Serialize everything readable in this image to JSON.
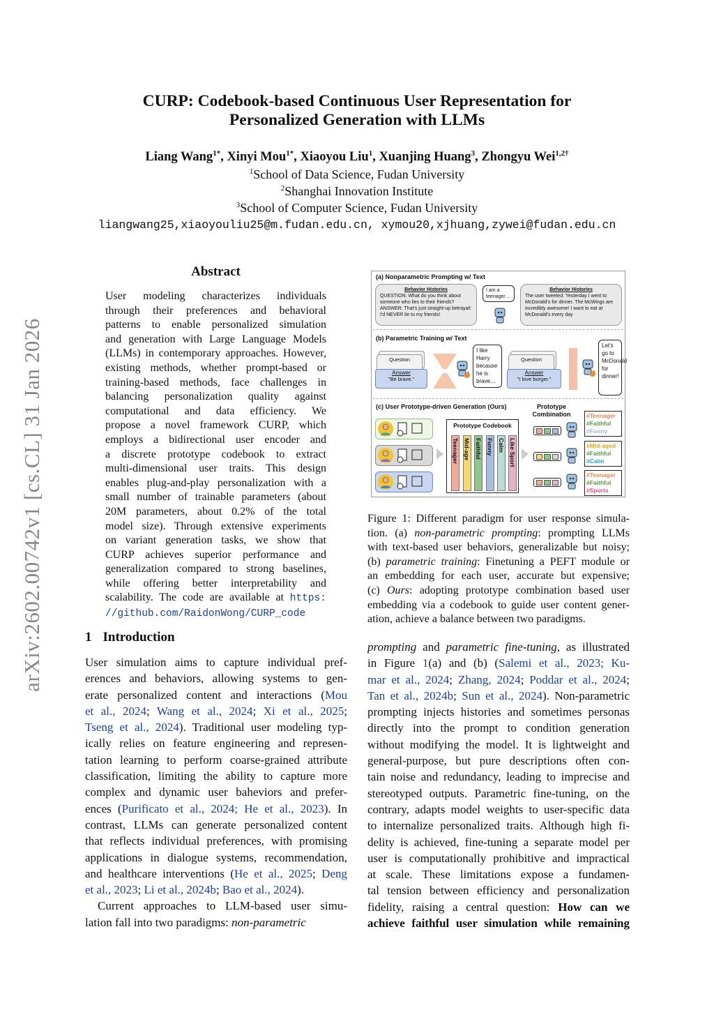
{
  "header": {
    "title_line1": "CURP: Codebook-based Continuous User Representation for",
    "title_line2": "Personalized Generation with LLMs",
    "authors": [
      {
        "name": "Liang Wang",
        "sup": "1*"
      },
      {
        "name": "Xinyi Mou",
        "sup": "1*"
      },
      {
        "name": "Xiaoyou Liu",
        "sup": "1"
      },
      {
        "name": "Xuanjing Huang",
        "sup": "3"
      },
      {
        "name": "Zhongyu Wei",
        "sup": "1,2†"
      }
    ],
    "affiliations": [
      {
        "sup": "1",
        "text": "School of Data Science, Fudan University"
      },
      {
        "sup": "2",
        "text": "Shanghai Innovation Institute"
      },
      {
        "sup": "3",
        "text": "School of Computer Science, Fudan University"
      }
    ],
    "emails": "liangwang25,xiaoyouliu25@m.fudan.edu.cn, xymou20,xjhuang,zywei@fudan.edu.cn"
  },
  "arxiv_stamp": "arXiv:2602.00742v1  [cs.CL]  31 Jan 2026",
  "abstract": {
    "heading": "Abstract",
    "lines": [
      [
        {
          "t": "User modeling characterizes individuals"
        }
      ],
      [
        {
          "t": "through their preferences and behavioral"
        }
      ],
      [
        {
          "t": "patterns to enable personalized simulation"
        }
      ],
      [
        {
          "t": "and generation with Large Language Models"
        }
      ],
      [
        {
          "t": "(LLMs) in contemporary approaches. However,"
        }
      ],
      [
        {
          "t": "existing methods, whether prompt-based or"
        }
      ],
      [
        {
          "t": "training-based methods, face challenges in"
        }
      ],
      [
        {
          "t": "balancing personalization quality against"
        }
      ],
      [
        {
          "t": "computational and data efficiency. We"
        }
      ],
      [
        {
          "t": "propose a novel framework CURP, which"
        }
      ],
      [
        {
          "t": "employs a bidirectional user encoder and"
        }
      ],
      [
        {
          "t": "a discrete prototype codebook to extract"
        }
      ],
      [
        {
          "t": "multi-dimensional user traits. This design"
        }
      ],
      [
        {
          "t": "enables plug-and-play personalization with a"
        }
      ],
      [
        {
          "t": "small number of trainable parameters (about"
        }
      ],
      [
        {
          "t": "20M parameters, about 0.2% of the total"
        }
      ],
      [
        {
          "t": "model size). Through extensive experiments"
        }
      ],
      [
        {
          "t": "on variant generation tasks, we show that"
        }
      ],
      [
        {
          "t": "CURP achieves superior performance and"
        }
      ],
      [
        {
          "t": "generalization compared to strong baselines,"
        }
      ],
      [
        {
          "t": "while offering better interpretability and"
        }
      ],
      [
        {
          "t": "scalability. The code are available at "
        },
        {
          "t": "https:",
          "s": "mlk"
        }
      ],
      [
        {
          "t": "//github.com/RaidonWong/CURP_code",
          "s": "mlk"
        }
      ]
    ]
  },
  "introduction": {
    "number": "1",
    "heading": "Introduction",
    "lines": [
      [
        {
          "t": "User simulation aims to capture individual pref-"
        }
      ],
      [
        {
          "t": "erences and behaviors, allowing systems to gen-"
        }
      ],
      [
        {
          "t": "erate personalized content and interactions ("
        },
        {
          "t": "Mou",
          "s": "lk"
        }
      ],
      [
        {
          "t": "et al., 2024",
          "s": "lk"
        },
        {
          "t": "; "
        },
        {
          "t": "Wang et al., 2024",
          "s": "lk"
        },
        {
          "t": "; "
        },
        {
          "t": "Xi et al., 2025",
          "s": "lk"
        },
        {
          "t": ";"
        }
      ],
      [
        {
          "t": "Tseng et al., 2024",
          "s": "lk"
        },
        {
          "t": "). Traditional user modeling typ-"
        }
      ],
      [
        {
          "t": "ically relies on feature engineering and represen-"
        }
      ],
      [
        {
          "t": "tation learning to perform coarse-grained attribute"
        }
      ],
      [
        {
          "t": "classification, limiting the ability to capture more"
        }
      ],
      [
        {
          "t": "complex and dynamic user baheviors and prefer-"
        }
      ],
      [
        {
          "t": "ences ("
        },
        {
          "t": "Purificato et al., 2024; He et al., 2023",
          "s": "lk"
        },
        {
          "t": "). In"
        }
      ],
      [
        {
          "t": "contrast, LLMs can generate personalized content"
        }
      ],
      [
        {
          "t": "that reflects individual preferences, with promising"
        }
      ],
      [
        {
          "t": "applications in dialogue systems, recommendation,"
        }
      ],
      [
        {
          "t": "and healthcare interventions ("
        },
        {
          "t": "He et al., 2025",
          "s": "lk"
        },
        {
          "t": "; "
        },
        {
          "t": "Deng",
          "s": "lk"
        }
      ],
      [
        {
          "t": "et al., 2023",
          "s": "lk"
        },
        {
          "t": "; "
        },
        {
          "t": "Li et al., 2024b",
          "s": "lk"
        },
        {
          "t": "; "
        },
        {
          "t": "Bao et al., 2024",
          "s": "lk"
        },
        {
          "t": ")."
        }
      ],
      [
        {
          "t": "Current approaches to LLM-based user simu-"
        }
      ],
      [
        {
          "t": "lation fall into two paradigms: "
        },
        {
          "t": "non-parametric",
          "s": "it"
        }
      ]
    ]
  },
  "figure": {
    "a_title": "(a) Nonparametric Prompting w/ Text",
    "a_box1_heading": "Behavior Histories",
    "a_box1_text": "QUESTION: What do you think about someone who lies to their friends? ANSWER: That's just straight-up betrayal! I'd NEVER lie to my friends!",
    "a_bubble": "I am a teenager…",
    "a_box2_heading": "Behavior Histories",
    "a_box2_text": "The user tweeted: Yesterday I went to McDonald's for dinner. The McWings are incredibly awesome! I want to eat at McDonald's every day",
    "b_title": "(b) Parametric Training w/ Text",
    "b_question": "Question",
    "b_answer": "Answer",
    "b_answer1": "\"Be brave.\"",
    "b_bubble1": "I like Harry because he is brave…",
    "b_answer2": "\"I love burger.\"",
    "b_bubble2": "Let's go to McDonald for dinner!",
    "c_title": "(c) User Prototype-driven Generation (Ours)",
    "c_combination": "Prototype Combination",
    "c_codebook": "Prototype Codebook",
    "c_codebook_items": [
      {
        "label": "Teenager",
        "color": "#f4a99a"
      },
      {
        "label": "Mid-age",
        "color": "#f7d96a"
      },
      {
        "label": "Faithful",
        "color": "#8ec98a"
      },
      {
        "label": "Funny",
        "color": "#a9bde0"
      },
      {
        "label": "Calm",
        "color": "#b9dcd6"
      },
      {
        "label": "Like Sport",
        "color": "#e6b3c6"
      }
    ],
    "c_users": [
      {
        "border": "#8cc27a",
        "bg": "#eef7e8"
      },
      {
        "border": "#888888",
        "bg": "#d9d9d9"
      },
      {
        "border": "#6c86c8",
        "bg": "#c9d6ef"
      }
    ],
    "c_combos": [
      [
        "#f4a99a",
        "#8ec98a",
        "#a9bde0"
      ],
      [
        "#f7d96a",
        "#8ec98a",
        "#cfd9d6"
      ],
      [
        "#f4a99a",
        "#8ec98a",
        "#e6b3c6"
      ]
    ],
    "c_tags": [
      [
        {
          "t": "#Teenager",
          "c": "#e08a50"
        },
        {
          "t": "#Faithful",
          "c": "#5e9a45"
        },
        {
          "t": "#Funny",
          "c": "#9fb4dc"
        }
      ],
      [
        {
          "t": "#Mid-aged",
          "c": "#d4a820"
        },
        {
          "t": "#Faithful",
          "c": "#5e9a45"
        },
        {
          "t": "#Calm",
          "c": "#2aa0c0"
        }
      ],
      [
        {
          "t": "#Teenager",
          "c": "#e08a50"
        },
        {
          "t": "#Faithful",
          "c": "#5e9a45"
        },
        {
          "t": "#Sports",
          "c": "#e0508a"
        }
      ]
    ]
  },
  "caption": {
    "lines": [
      [
        {
          "t": "Figure 1: Different paradigm for user response simula-"
        }
      ],
      [
        {
          "t": "tion. (a) "
        },
        {
          "t": "non-parametric prompting",
          "s": "it"
        },
        {
          "t": ": prompting LLMs"
        }
      ],
      [
        {
          "t": "with text-based user behaviors, generalizable but noisy;"
        }
      ],
      [
        {
          "t": "(b) "
        },
        {
          "t": "parametric training",
          "s": "it"
        },
        {
          "t": ": Finetuning a PEFT module or"
        }
      ],
      [
        {
          "t": "an embedding for each user, accurate but expensive;"
        }
      ],
      [
        {
          "t": "(c) "
        },
        {
          "t": "Ours",
          "s": "it"
        },
        {
          "t": ": adopting prototype combination based user"
        }
      ],
      [
        {
          "t": "embedding via a codebook to guide user content gener-"
        }
      ],
      [
        {
          "t": "ation, achieve a balance between two paradigms."
        }
      ]
    ]
  },
  "right_column": {
    "lines": [
      [
        {
          "t": "prompting",
          "s": "it"
        },
        {
          "t": " and "
        },
        {
          "t": "parametric fine-tuning",
          "s": "it"
        },
        {
          "t": ", as illustrated"
        }
      ],
      [
        {
          "t": "in Figure "
        },
        {
          "t": "1",
          "s": "lk"
        },
        {
          "t": "(a) and (b) ("
        },
        {
          "t": "Salemi et al., 2023; Ku-",
          "s": "lk"
        }
      ],
      [
        {
          "t": "mar et al., 2024",
          "s": "lk"
        },
        {
          "t": "; "
        },
        {
          "t": "Zhang, 2024",
          "s": "lk"
        },
        {
          "t": "; "
        },
        {
          "t": "Poddar et al., 2024",
          "s": "lk"
        },
        {
          "t": ";"
        }
      ],
      [
        {
          "t": "Tan et al., 2024b",
          "s": "lk"
        },
        {
          "t": "; "
        },
        {
          "t": "Sun et al., 2024",
          "s": "lk"
        },
        {
          "t": "). Non-parametric"
        }
      ],
      [
        {
          "t": "prompting injects histories and sometimes personas"
        }
      ],
      [
        {
          "t": "directly into the prompt to condition generation"
        }
      ],
      [
        {
          "t": "without modifying the model. It is lightweight and"
        }
      ],
      [
        {
          "t": "general-purpose, but pure descriptions often con-"
        }
      ],
      [
        {
          "t": "tain noise and redundancy, leading to imprecise and"
        }
      ],
      [
        {
          "t": "stereotyped outputs. Parametric fine-tuning, on the"
        }
      ],
      [
        {
          "t": "contrary, adapts model weights to user-specific data"
        }
      ],
      [
        {
          "t": "to internalize personalized traits. Although high fi-"
        }
      ],
      [
        {
          "t": "delity is achieved, fine-tuning a separate model per"
        }
      ],
      [
        {
          "t": "user is computationally prohibitive and impractical"
        }
      ],
      [
        {
          "t": "at scale. These limitations expose a fundamen-"
        }
      ],
      [
        {
          "t": "tal tension between efficiency and personalization"
        }
      ],
      [
        {
          "t": "fidelity, raising a central question: "
        },
        {
          "t": "How can we",
          "s": "bd"
        }
      ],
      [
        {
          "t": "achieve faithful user simulation while remaining",
          "s": "bd"
        }
      ]
    ]
  }
}
